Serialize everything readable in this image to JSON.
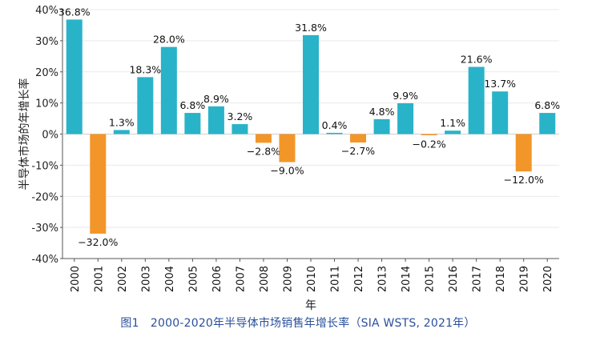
{
  "chart_data": {
    "type": "bar",
    "xlabel": "年",
    "ylabel": "半导体市场的年增长率",
    "ylim": [
      -40,
      40
    ],
    "y_ticks": [
      "40%",
      "30%",
      "20%",
      "10%",
      "0%",
      "-10%",
      "-20%",
      "-30%",
      "-40%"
    ],
    "y_tick_values": [
      40,
      30,
      20,
      10,
      0,
      -10,
      -20,
      -30,
      -40
    ],
    "categories": [
      "2000",
      "2001",
      "2002",
      "2003",
      "2004",
      "2005",
      "2006",
      "2007",
      "2008",
      "2009",
      "2010",
      "2011",
      "2012",
      "2013",
      "2014",
      "2015",
      "2016",
      "2017",
      "2018",
      "2019",
      "2020"
    ],
    "values": [
      36.8,
      -32.0,
      1.3,
      18.3,
      28.0,
      6.8,
      8.9,
      3.2,
      -2.8,
      -9.0,
      31.8,
      0.4,
      -2.7,
      4.8,
      9.9,
      -0.2,
      1.1,
      21.6,
      13.7,
      -12.0,
      6.8
    ],
    "data_labels": [
      "36.8%",
      "−32.0%",
      "1.3%",
      "18.3%",
      "28.0%",
      "6.8%",
      "8.9%",
      "3.2%",
      "−2.8%",
      "−9.0%",
      "31.8%",
      "0.4%",
      "−2.7%",
      "4.8%",
      "9.9%",
      "−0.2%",
      "1.1%",
      "21.6%",
      "13.7%",
      "−12.0%",
      "6.8%"
    ],
    "colors": {
      "positive": "#29b3c9",
      "negative": "#f2962a",
      "axis": "#555555",
      "grid": "#e9e9e9"
    },
    "grid": true,
    "legend": "none"
  },
  "caption": "图1　2000-2020年半导体市场销售年增长率（SIA WSTS, 2021年）"
}
